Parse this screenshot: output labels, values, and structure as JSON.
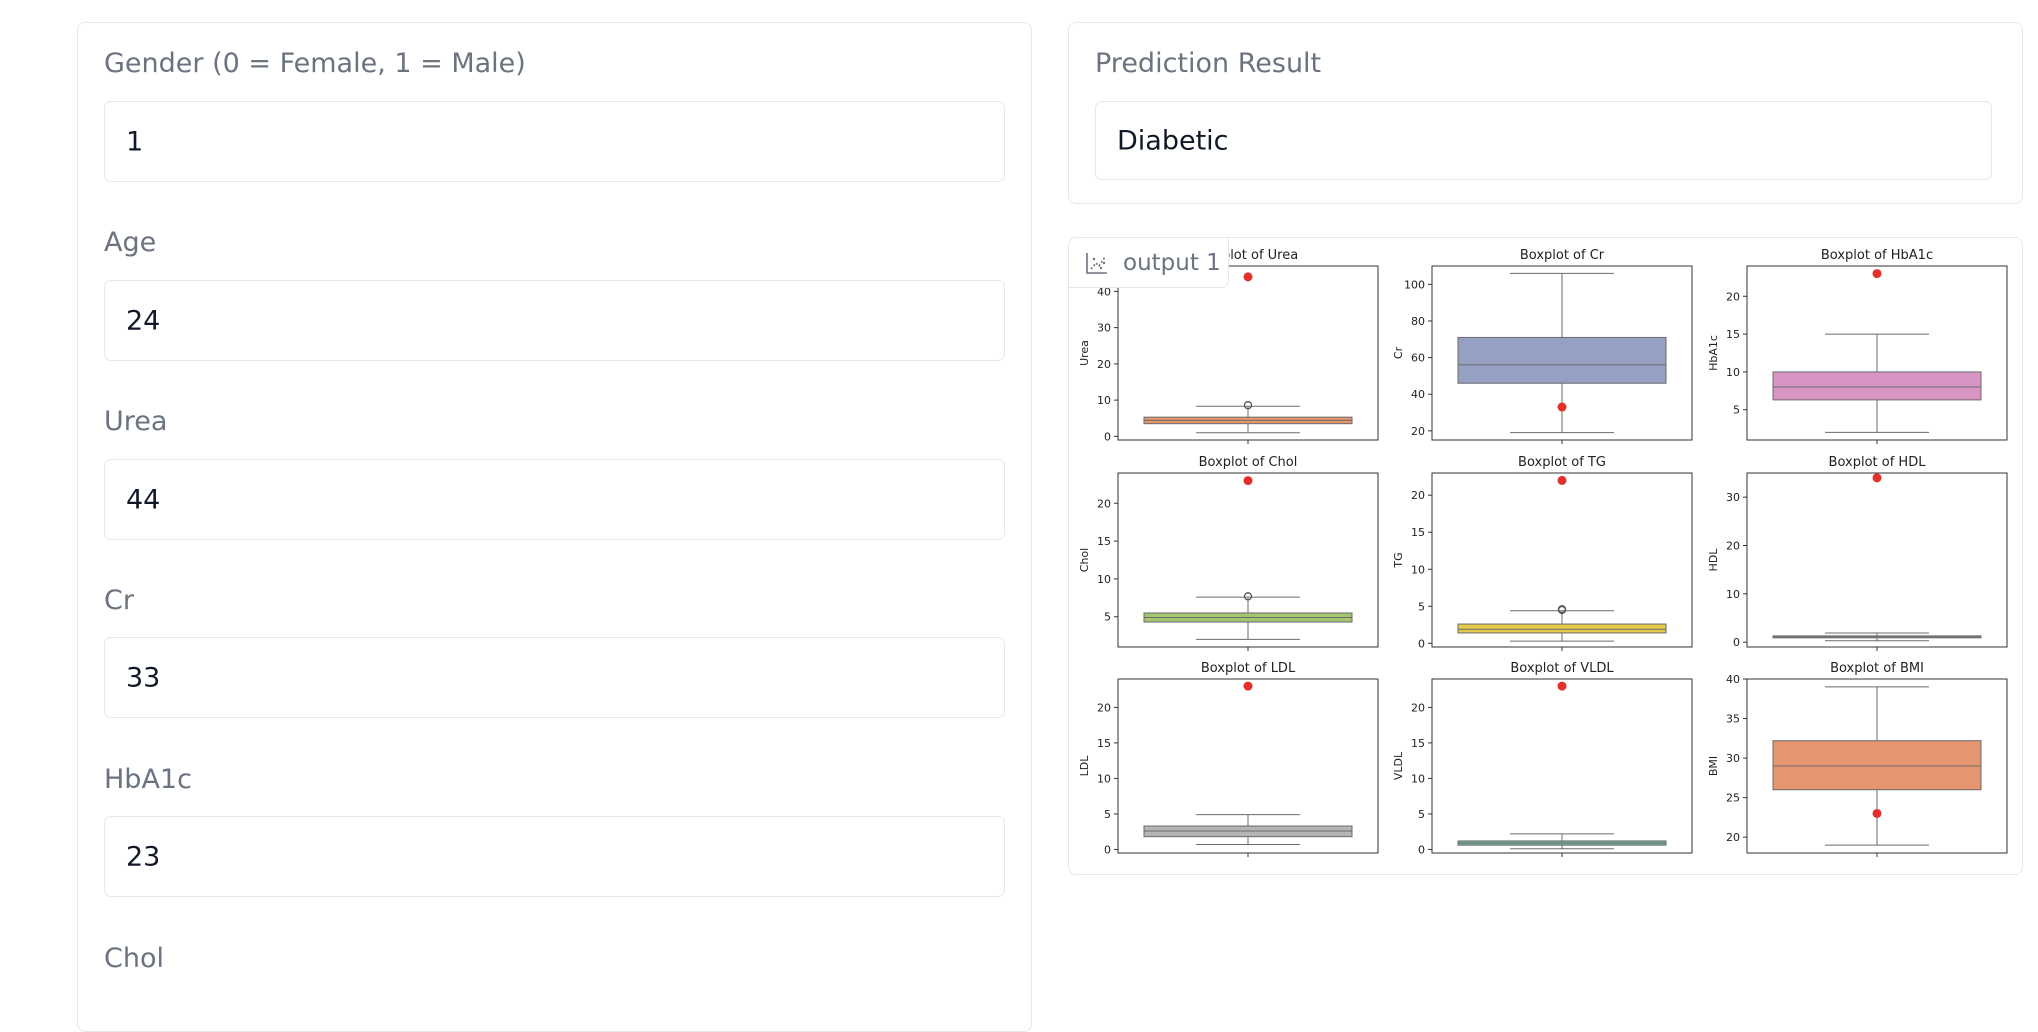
{
  "form": {
    "fields": [
      {
        "label": "Gender (0 = Female, 1 = Male)",
        "value": "1"
      },
      {
        "label": "Age",
        "value": "24"
      },
      {
        "label": "Urea",
        "value": "44"
      },
      {
        "label": "Cr",
        "value": "33"
      },
      {
        "label": "HbA1c",
        "value": "23"
      },
      {
        "label": "Chol",
        "value": ""
      }
    ]
  },
  "result": {
    "label": "Prediction Result",
    "value": "Diabetic"
  },
  "output": {
    "label": "output 1",
    "icon": "chart-icon"
  },
  "chart_data": [
    {
      "type": "boxplot",
      "title": "Boxplot of Urea",
      "ylabel": "Urea",
      "ylim": [
        -1,
        47
      ],
      "yticks": [
        0,
        10,
        20,
        30,
        40
      ],
      "color": "#e5956f",
      "box": {
        "whisker_low": 1,
        "q1": 3.5,
        "median": 4.4,
        "q3": 5.3,
        "whisker_high": 8.3
      },
      "fliers": [
        8.6
      ],
      "highlight": 44
    },
    {
      "type": "boxplot",
      "title": "Boxplot of Cr",
      "ylabel": "Cr",
      "ylim": [
        15,
        110
      ],
      "yticks": [
        20,
        40,
        60,
        80,
        100
      ],
      "color": "#95a0c3",
      "box": {
        "whisker_low": 19,
        "q1": 46,
        "median": 56,
        "q3": 71,
        "whisker_high": 106
      },
      "fliers": [],
      "highlight": 33
    },
    {
      "type": "boxplot",
      "title": "Boxplot of HbA1c",
      "ylabel": "HbA1c",
      "ylim": [
        1,
        24
      ],
      "yticks": [
        5,
        10,
        15,
        20
      ],
      "color": "#d895c3",
      "box": {
        "whisker_low": 2,
        "q1": 6.3,
        "median": 8,
        "q3": 10,
        "whisker_high": 15
      },
      "fliers": [],
      "highlight": 23
    },
    {
      "type": "boxplot",
      "title": "Boxplot of Chol",
      "ylabel": "Chol",
      "ylim": [
        1,
        24
      ],
      "yticks": [
        5,
        10,
        15,
        20
      ],
      "color": "#a4c76e",
      "box": {
        "whisker_low": 2,
        "q1": 4.3,
        "median": 4.9,
        "q3": 5.5,
        "whisker_high": 7.6
      },
      "fliers": [
        7.7
      ],
      "highlight": 23
    },
    {
      "type": "boxplot",
      "title": "Boxplot of TG",
      "ylabel": "TG",
      "ylim": [
        -0.5,
        23
      ],
      "yticks": [
        0,
        5,
        10,
        15,
        20
      ],
      "color": "#e5c94b",
      "box": {
        "whisker_low": 0.3,
        "q1": 1.4,
        "median": 1.9,
        "q3": 2.6,
        "whisker_high": 4.4
      },
      "fliers": [
        4.5,
        4.6
      ],
      "highlight": 22
    },
    {
      "type": "boxplot",
      "title": "Boxplot of HDL",
      "ylabel": "HDL",
      "ylim": [
        -1,
        35
      ],
      "yticks": [
        0,
        10,
        20,
        30
      ],
      "color": "#d9be8c",
      "box": {
        "whisker_low": 0.3,
        "q1": 0.9,
        "median": 1.1,
        "q3": 1.3,
        "whisker_high": 1.9
      },
      "fliers": [],
      "highlight": 34
    },
    {
      "type": "boxplot",
      "title": "Boxplot of LDL",
      "ylabel": "LDL",
      "ylim": [
        -0.5,
        24
      ],
      "yticks": [
        0,
        5,
        10,
        15,
        20
      ],
      "color": "#b5b5b5",
      "box": {
        "whisker_low": 0.7,
        "q1": 1.8,
        "median": 2.6,
        "q3": 3.3,
        "whisker_high": 4.9
      },
      "fliers": [],
      "highlight": 23
    },
    {
      "type": "boxplot",
      "title": "Boxplot of VLDL",
      "ylabel": "VLDL",
      "ylim": [
        -0.5,
        24
      ],
      "yticks": [
        0,
        5,
        10,
        15,
        20
      ],
      "color": "#6fb2a0",
      "box": {
        "whisker_low": 0.1,
        "q1": 0.6,
        "median": 0.9,
        "q3": 1.2,
        "whisker_high": 2.2
      },
      "fliers": [],
      "highlight": 23
    },
    {
      "type": "boxplot",
      "title": "Boxplot of BMI",
      "ylabel": "BMI",
      "ylim": [
        18,
        40
      ],
      "yticks": [
        20,
        25,
        30,
        35,
        40
      ],
      "color": "#e5956f",
      "box": {
        "whisker_low": 19,
        "q1": 26,
        "median": 29,
        "q3": 32.2,
        "whisker_high": 39
      },
      "fliers": [],
      "highlight": 23
    }
  ]
}
